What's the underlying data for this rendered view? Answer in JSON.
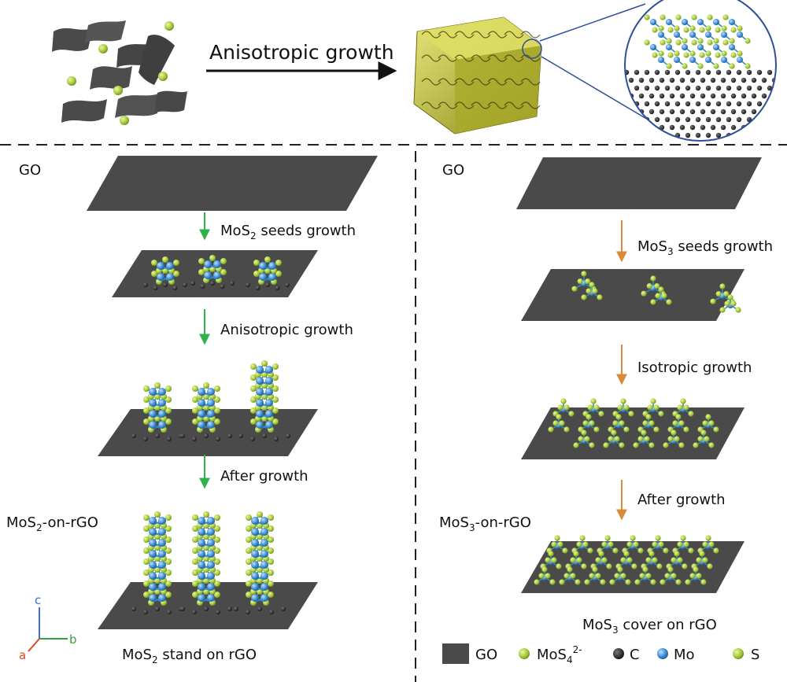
{
  "top": {
    "arrow_label": "Anisotropic growth"
  },
  "left_panel": {
    "start_label": "GO",
    "step1": {
      "prefix": "MoS",
      "sub": "2",
      "suffix": " seeds growth"
    },
    "step2": "Anisotropic growth",
    "step3": "After growth",
    "side": {
      "prefix": "MoS",
      "sub": "2",
      "suffix": "-on-rGO"
    },
    "caption": {
      "prefix": "MoS",
      "sub": "2",
      "suffix": " stand on rGO"
    },
    "arrow_color": "#2db34a"
  },
  "right_panel": {
    "start_label": "GO",
    "step1": {
      "prefix": "MoS",
      "sub": "3",
      "suffix": " seeds growth"
    },
    "step2": "Isotropic growth",
    "step3": "After growth",
    "side": {
      "prefix": "MoS",
      "sub": "3",
      "suffix": "-on-rGO"
    },
    "caption": {
      "prefix": "MoS",
      "sub": "3",
      "suffix": " cover on rGO"
    },
    "arrow_color": "#d98a3a"
  },
  "axes": {
    "c": "c",
    "b": "b",
    "a": "a",
    "c_color": "#3a6fd8",
    "b_color": "#3aa040",
    "a_color": "#d84a2a"
  },
  "legend": {
    "go": "GO",
    "mos4": {
      "prefix": "MoS",
      "sub": "4",
      "sup": "2-"
    },
    "c": "C",
    "mo": "Mo",
    "s": "S"
  },
  "colors": {
    "sheet": "#4a4a4a",
    "s_atom": "#a8cc3a",
    "mo_atom": "#3f8fd6",
    "c_atom": "#1f1f1f",
    "bond": "#2f8fbf",
    "cube": "#c9c933"
  }
}
